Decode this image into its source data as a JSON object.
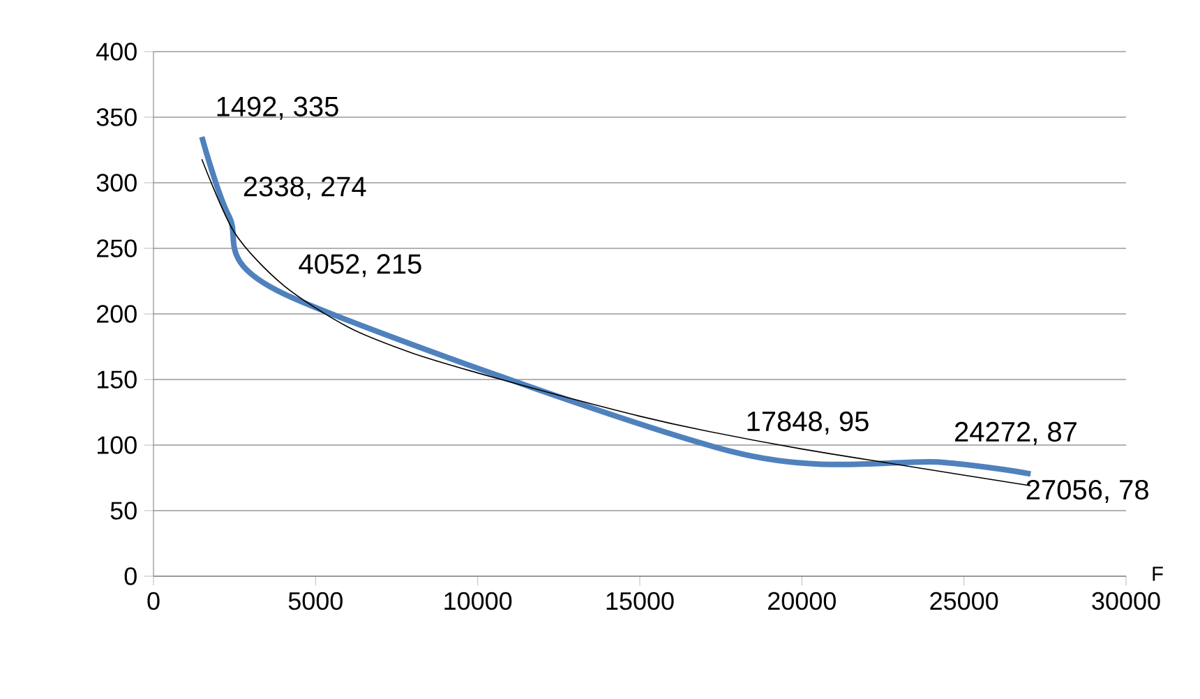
{
  "chart_data": {
    "type": "line",
    "xlabel": "F",
    "xlim": [
      0,
      30000
    ],
    "xticks": [
      0,
      5000,
      10000,
      15000,
      20000,
      25000,
      30000
    ],
    "ylim": [
      0,
      400
    ],
    "yticks": [
      0,
      50,
      100,
      150,
      200,
      250,
      300,
      350,
      400
    ],
    "grid": "y",
    "marker": "none",
    "series": [
      {
        "color": "#4f81bd",
        "x": [
          1492,
          2338,
          4052,
          17848,
          24272,
          27056
        ],
        "values": [
          335,
          274,
          215,
          95,
          87,
          78
        ],
        "value_labels": [
          "1492, 335",
          "2338, 274",
          "4052, 215",
          "17848, 95",
          "24272, 87",
          "27056, 78"
        ]
      },
      {
        "type": "line",
        "color": "#000000",
        "x": [
          1492,
          2500,
          4000,
          6000,
          8000,
          10000,
          12500,
          15000,
          17000,
          20000,
          23000,
          27056
        ],
        "values": [
          318,
          262,
          222,
          190,
          170,
          155,
          138,
          122,
          111,
          97,
          85,
          69
        ]
      }
    ]
  }
}
